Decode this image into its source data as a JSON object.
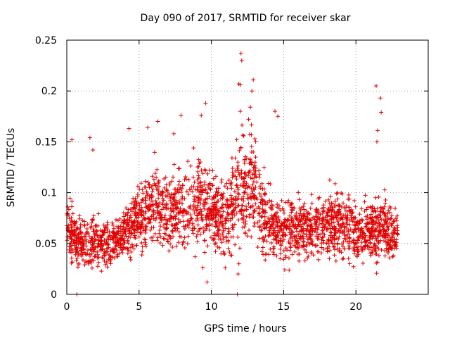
{
  "chart_data": {
    "type": "scatter",
    "title": "Day 090 of 2017, SRMTID for receiver skar",
    "xlabel": "GPS time / hours",
    "ylabel": "SRMTID / TECUs",
    "xlim": [
      0,
      25
    ],
    "ylim": [
      0,
      0.25
    ],
    "grid": true,
    "x_ticks": [
      0,
      5,
      10,
      15,
      20
    ],
    "x_tick_labels": [
      "0",
      "5",
      "10",
      "15",
      "20"
    ],
    "y_ticks": [
      0,
      0.05,
      0.1,
      0.15,
      0.2,
      0.25
    ],
    "y_tick_labels": [
      "0",
      "0.05",
      "0.1",
      "0.15",
      "0.2",
      "0.25"
    ],
    "marker": "+",
    "color": "#e00000",
    "profile": {
      "hours": [
        0.0,
        0.5,
        1.0,
        2.0,
        3.0,
        4.0,
        5.0,
        6.0,
        7.0,
        8.0,
        9.0,
        10.0,
        11.0,
        12.0,
        12.8,
        13.5,
        14.5,
        15.5,
        16.5,
        17.5,
        18.5,
        19.5,
        20.5,
        21.5,
        22.9
      ],
      "center": [
        0.07,
        0.055,
        0.05,
        0.05,
        0.05,
        0.06,
        0.075,
        0.09,
        0.08,
        0.085,
        0.09,
        0.085,
        0.075,
        0.1,
        0.11,
        0.08,
        0.065,
        0.065,
        0.065,
        0.07,
        0.07,
        0.065,
        0.06,
        0.065,
        0.06
      ],
      "spread": [
        0.025,
        0.02,
        0.02,
        0.018,
        0.018,
        0.02,
        0.025,
        0.03,
        0.03,
        0.03,
        0.035,
        0.03,
        0.03,
        0.04,
        0.045,
        0.03,
        0.025,
        0.025,
        0.025,
        0.025,
        0.025,
        0.025,
        0.02,
        0.025,
        0.02
      ]
    },
    "n_points": 2600,
    "outliers": [
      {
        "x": 0.35,
        "y": 0.152
      },
      {
        "x": 1.6,
        "y": 0.154
      },
      {
        "x": 1.8,
        "y": 0.142
      },
      {
        "x": 4.3,
        "y": 0.163
      },
      {
        "x": 5.6,
        "y": 0.164
      },
      {
        "x": 6.3,
        "y": 0.17
      },
      {
        "x": 7.4,
        "y": 0.158
      },
      {
        "x": 7.9,
        "y": 0.176
      },
      {
        "x": 9.3,
        "y": 0.176
      },
      {
        "x": 9.6,
        "y": 0.188
      },
      {
        "x": 9.7,
        "y": 0.012
      },
      {
        "x": 12.0,
        "y": 0.206
      },
      {
        "x": 12.05,
        "y": 0.237
      },
      {
        "x": 12.1,
        "y": 0.23
      },
      {
        "x": 12.0,
        "y": 0.18
      },
      {
        "x": 11.9,
        "y": 0.207
      },
      {
        "x": 12.9,
        "y": 0.211
      },
      {
        "x": 12.8,
        "y": 0.2
      },
      {
        "x": 12.7,
        "y": 0.184
      },
      {
        "x": 14.4,
        "y": 0.18
      },
      {
        "x": 14.6,
        "y": 0.175
      },
      {
        "x": 21.4,
        "y": 0.205
      },
      {
        "x": 21.7,
        "y": 0.193
      },
      {
        "x": 21.75,
        "y": 0.179
      },
      {
        "x": 21.5,
        "y": 0.161
      },
      {
        "x": 21.45,
        "y": 0.15
      },
      {
        "x": 0.7,
        "y": 0.0
      },
      {
        "x": 11.8,
        "y": 0.0
      },
      {
        "x": 11.85,
        "y": 0.02
      },
      {
        "x": 11.9,
        "y": 0.03
      }
    ]
  }
}
